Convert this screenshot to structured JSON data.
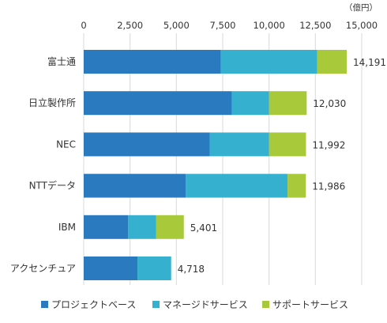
{
  "chart_data": {
    "type": "bar",
    "orientation": "horizontal",
    "stacked": true,
    "unit": "（億円）",
    "xlim": [
      0,
      15000
    ],
    "ticks": [
      0,
      2500,
      5000,
      7500,
      10000,
      12500,
      15000
    ],
    "tick_labels": [
      "0",
      "2,500",
      "5,000",
      "7,500",
      "10,000",
      "12,500",
      "15,000"
    ],
    "grid": "vertical",
    "categories": [
      "富士通",
      "日立製作所",
      "NEC",
      "NTTデータ",
      "IBM",
      "アクセンチュア"
    ],
    "series": [
      {
        "name": "プロジェクトベース",
        "color": "#2a7abf",
        "values": [
          7400,
          8000,
          6800,
          5500,
          2400,
          2900
        ]
      },
      {
        "name": "マネージドサービス",
        "color": "#36b0cf",
        "values": [
          5200,
          2000,
          3200,
          5500,
          1500,
          1818
        ]
      },
      {
        "name": "サポートサービス",
        "color": "#a7c93a",
        "values": [
          1591,
          2030,
          1992,
          986,
          1501,
          0
        ]
      }
    ],
    "totals": [
      14191,
      12030,
      11992,
      11986,
      5401,
      4718
    ],
    "total_labels": [
      "14,191",
      "12,030",
      "11,992",
      "11,986",
      "5,401",
      "4,718"
    ],
    "legend_position": "bottom"
  }
}
